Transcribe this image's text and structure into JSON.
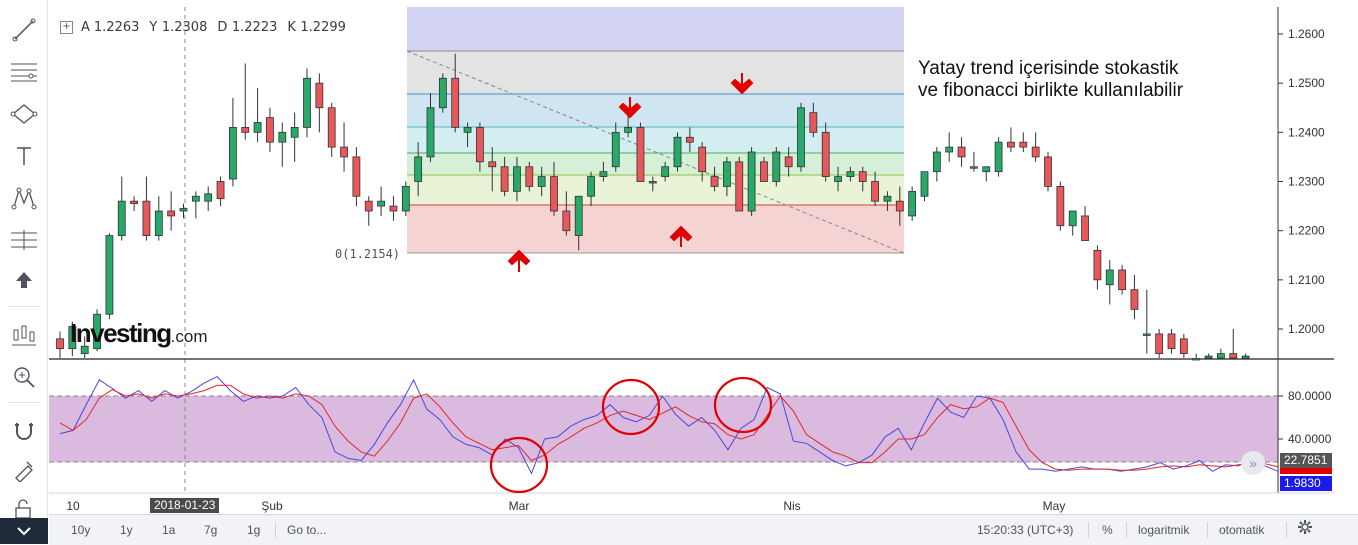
{
  "toolbar": {
    "tools": [
      "trend-line-tool",
      "horizontal-lines-tool",
      "shapes-tool",
      "text-tool",
      "pattern-tool",
      "measure-tool",
      "arrow-up-tool",
      "indicators-tool",
      "zoom-tool",
      "magnet-tool",
      "lock-drawing-tool",
      "unlock-tool"
    ]
  },
  "ohlc": {
    "a_label": "A",
    "a": "1.2263",
    "y_label": "Y",
    "y": "1.2308",
    "d_label": "D",
    "d": "1.2223",
    "k_label": "K",
    "k": "1.2299"
  },
  "annotation": {
    "line1": "Yatay trend içerisinde stokastik",
    "line2": "ve  fibonacci birlikte kullanılabilir"
  },
  "logo": {
    "text": "Investing",
    "suffix": ".com"
  },
  "fib": {
    "zero_label": "0(1.2154)"
  },
  "crosshair_date": "2018-01-23",
  "price_tags": {
    "stoch_k": "22.7851",
    "stoch_d": "1.9830"
  },
  "bottombar": {
    "ranges": [
      "10y",
      "1y",
      "1a",
      "7g",
      "1g"
    ],
    "goto": "Go to...",
    "time": "15:20:33 (UTC+3)",
    "percent": "%",
    "log": "logaritmik",
    "auto": "otomatik"
  },
  "chart_data": [
    {
      "type": "candlestick",
      "ylim": [
        1.1935,
        1.2665
      ],
      "y_ticks": [
        "1.2600",
        "1.2500",
        "1.2400",
        "1.2300",
        "1.2200",
        "1.2100",
        "1.2000"
      ],
      "y_tick_values": [
        1.26,
        1.25,
        1.24,
        1.23,
        1.22,
        1.21,
        1.2
      ],
      "x_tick_labels": [
        "10",
        "Şub",
        "Mar",
        "Nis",
        "May"
      ],
      "colors": {
        "up": "#27a96a",
        "down": "#e8575a"
      },
      "ohlc": [
        [
          1.198,
          1.1995,
          1.194,
          1.196
        ],
        [
          1.196,
          1.2015,
          1.1945,
          1.2005
        ],
        [
          1.195,
          1.1985,
          1.1935,
          1.1965
        ],
        [
          1.196,
          1.204,
          1.1955,
          1.203
        ],
        [
          1.203,
          1.2195,
          1.202,
          1.219
        ],
        [
          1.219,
          1.231,
          1.218,
          1.226
        ],
        [
          1.226,
          1.227,
          1.224,
          1.2255
        ],
        [
          1.226,
          1.231,
          1.218,
          1.219
        ],
        [
          1.219,
          1.227,
          1.218,
          1.224
        ],
        [
          1.224,
          1.228,
          1.22,
          1.223
        ],
        [
          1.224,
          1.2255,
          1.2225,
          1.2245
        ],
        [
          1.226,
          1.228,
          1.2225,
          1.227
        ],
        [
          1.226,
          1.229,
          1.224,
          1.2275
        ],
        [
          1.23,
          1.231,
          1.225,
          1.2265
        ],
        [
          1.2305,
          1.247,
          1.229,
          1.241
        ],
        [
          1.241,
          1.254,
          1.2385,
          1.24
        ],
        [
          1.24,
          1.249,
          1.238,
          1.242
        ],
        [
          1.243,
          1.245,
          1.236,
          1.238
        ],
        [
          1.238,
          1.242,
          1.233,
          1.24
        ],
        [
          1.239,
          1.244,
          1.234,
          1.241
        ],
        [
          1.241,
          1.253,
          1.239,
          1.251
        ],
        [
          1.25,
          1.252,
          1.24,
          1.245
        ],
        [
          1.245,
          1.246,
          1.235,
          1.237
        ],
        [
          1.237,
          1.242,
          1.232,
          1.235
        ],
        [
          1.235,
          1.237,
          1.225,
          1.227
        ],
        [
          1.226,
          1.227,
          1.221,
          1.224
        ],
        [
          1.225,
          1.229,
          1.223,
          1.226
        ],
        [
          1.225,
          1.227,
          1.222,
          1.224
        ],
        [
          1.224,
          1.23,
          1.223,
          1.229
        ],
        [
          1.23,
          1.238,
          1.227,
          1.235
        ],
        [
          1.235,
          1.248,
          1.234,
          1.245
        ],
        [
          1.245,
          1.252,
          1.244,
          1.251
        ],
        [
          1.251,
          1.256,
          1.24,
          1.241
        ],
        [
          1.24,
          1.242,
          1.237,
          1.241
        ],
        [
          1.241,
          1.242,
          1.232,
          1.234
        ],
        [
          1.234,
          1.237,
          1.228,
          1.233
        ],
        [
          1.233,
          1.235,
          1.227,
          1.228
        ],
        [
          1.228,
          1.235,
          1.226,
          1.233
        ],
        [
          1.233,
          1.234,
          1.228,
          1.229
        ],
        [
          1.229,
          1.233,
          1.227,
          1.231
        ],
        [
          1.231,
          1.234,
          1.223,
          1.224
        ],
        [
          1.224,
          1.228,
          1.219,
          1.22
        ],
        [
          1.219,
          1.227,
          1.216,
          1.227
        ],
        [
          1.227,
          1.232,
          1.225,
          1.231
        ],
        [
          1.231,
          1.234,
          1.23,
          1.232
        ],
        [
          1.233,
          1.242,
          1.232,
          1.24
        ],
        [
          1.24,
          1.245,
          1.239,
          1.241
        ],
        [
          1.241,
          1.242,
          1.23,
          1.23
        ],
        [
          1.23,
          1.231,
          1.228,
          1.23
        ],
        [
          1.231,
          1.234,
          1.23,
          1.233
        ],
        [
          1.233,
          1.24,
          1.232,
          1.239
        ],
        [
          1.239,
          1.241,
          1.236,
          1.238
        ],
        [
          1.237,
          1.238,
          1.23,
          1.232
        ],
        [
          1.231,
          1.233,
          1.228,
          1.229
        ],
        [
          1.229,
          1.235,
          1.227,
          1.234
        ],
        [
          1.234,
          1.235,
          1.224,
          1.224
        ],
        [
          1.224,
          1.237,
          1.223,
          1.236
        ],
        [
          1.234,
          1.235,
          1.23,
          1.23
        ],
        [
          1.23,
          1.237,
          1.229,
          1.236
        ],
        [
          1.235,
          1.237,
          1.231,
          1.233
        ],
        [
          1.233,
          1.246,
          1.232,
          1.245
        ],
        [
          1.244,
          1.246,
          1.239,
          1.24
        ],
        [
          1.24,
          1.242,
          1.23,
          1.231
        ],
        [
          1.23,
          1.233,
          1.228,
          1.231
        ],
        [
          1.231,
          1.233,
          1.23,
          1.232
        ],
        [
          1.232,
          1.233,
          1.228,
          1.23
        ],
        [
          1.23,
          1.232,
          1.225,
          1.226
        ],
        [
          1.226,
          1.228,
          1.224,
          1.227
        ],
        [
          1.226,
          1.229,
          1.221,
          1.224
        ],
        [
          1.223,
          1.229,
          1.222,
          1.228
        ],
        [
          1.227,
          1.232,
          1.226,
          1.232
        ],
        [
          1.232,
          1.237,
          1.23,
          1.236
        ],
        [
          1.236,
          1.24,
          1.234,
          1.237
        ],
        [
          1.237,
          1.239,
          1.233,
          1.235
        ],
        [
          1.233,
          1.236,
          1.232,
          1.233
        ],
        [
          1.232,
          1.233,
          1.23,
          1.233
        ],
        [
          1.232,
          1.239,
          1.231,
          1.238
        ],
        [
          1.238,
          1.241,
          1.236,
          1.237
        ],
        [
          1.238,
          1.24,
          1.236,
          1.237
        ],
        [
          1.237,
          1.24,
          1.234,
          1.235
        ],
        [
          1.235,
          1.236,
          1.228,
          1.229
        ],
        [
          1.229,
          1.23,
          1.22,
          1.221
        ],
        [
          1.221,
          1.224,
          1.219,
          1.224
        ],
        [
          1.223,
          1.225,
          1.218,
          1.218
        ],
        [
          1.216,
          1.217,
          1.208,
          1.21
        ],
        [
          1.209,
          1.214,
          1.205,
          1.212
        ],
        [
          1.212,
          1.213,
          1.207,
          1.208
        ],
        [
          1.208,
          1.211,
          1.202,
          1.204
        ],
        [
          1.199,
          1.208,
          1.195,
          1.199
        ],
        [
          1.199,
          1.2,
          1.194,
          1.195
        ],
        [
          1.199,
          1.2,
          1.195,
          1.196
        ],
        [
          1.198,
          1.199,
          1.192,
          1.195
        ],
        [
          1.194,
          1.195,
          1.192,
          1.194
        ],
        [
          1.194,
          1.195,
          1.193,
          1.1945
        ],
        [
          1.194,
          1.196,
          1.193,
          1.195
        ],
        [
          1.195,
          1.2,
          1.193,
          1.1935
        ],
        [
          1.1935,
          1.195,
          1.193,
          1.1945
        ]
      ]
    },
    {
      "type": "line",
      "indicator": "stochastic",
      "ylim": [
        0,
        100
      ],
      "y_ticks": [
        "80.0000",
        "40.0000"
      ],
      "y_tick_values": [
        80,
        40
      ],
      "band": [
        15,
        79
      ],
      "series": [
        {
          "color": "#4a48d8",
          "values": [
            45,
            48,
            72,
            95,
            87,
            78,
            85,
            75,
            85,
            78,
            84,
            92,
            98,
            85,
            75,
            80,
            78,
            80,
            88,
            72,
            60,
            28,
            22,
            20,
            35,
            55,
            72,
            95,
            68,
            58,
            42,
            35,
            32,
            25,
            40,
            32,
            8,
            40,
            42,
            52,
            58,
            62,
            72,
            60,
            56,
            62,
            80,
            63,
            52,
            60,
            48,
            30,
            50,
            58,
            88,
            82,
            38,
            36,
            28,
            20,
            15,
            18,
            25,
            42,
            50,
            30,
            55,
            78,
            65,
            60,
            80,
            78,
            58,
            28,
            12,
            12,
            10,
            12,
            14,
            12,
            12,
            10,
            12,
            14,
            18,
            12,
            15,
            20,
            10,
            16,
            15,
            22,
            15,
            10
          ]
        },
        {
          "color": "#e0282c",
          "values": [
            55,
            48,
            58,
            78,
            86,
            80,
            82,
            78,
            82,
            80,
            82,
            85,
            90,
            90,
            82,
            78,
            80,
            78,
            82,
            80,
            72,
            52,
            38,
            28,
            24,
            38,
            55,
            78,
            82,
            70,
            55,
            42,
            36,
            30,
            32,
            34,
            20,
            25,
            35,
            42,
            50,
            55,
            62,
            66,
            62,
            58,
            64,
            70,
            62,
            56,
            54,
            44,
            40,
            44,
            62,
            80,
            66,
            44,
            36,
            28,
            24,
            18,
            18,
            28,
            40,
            40,
            44,
            60,
            72,
            68,
            70,
            78,
            74,
            52,
            30,
            18,
            12,
            11,
            12,
            12,
            12,
            11,
            11,
            12,
            14,
            15,
            14,
            16,
            15,
            14,
            16,
            18,
            17,
            14
          ]
        }
      ]
    }
  ]
}
